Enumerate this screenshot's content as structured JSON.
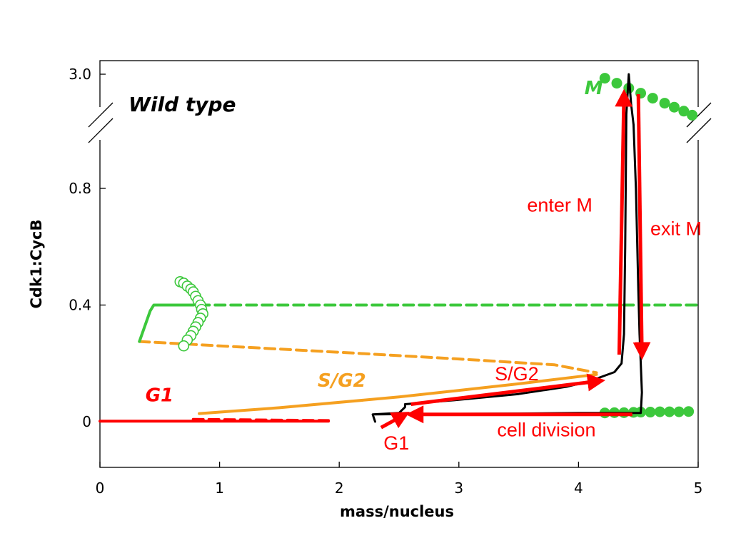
{
  "chart_data": {
    "type": "line",
    "title": "Wild type",
    "xlabel": "mass/nucleus",
    "ylabel": "Cdk1:CycB",
    "xlim": [
      0,
      5
    ],
    "ylim_lower": [
      -0.15,
      1.0
    ],
    "ylim_upper_tick": 3.0,
    "y_axis_break": true,
    "x_ticks": [
      {
        "value": 0,
        "label": "0"
      },
      {
        "value": 1,
        "label": "1"
      },
      {
        "value": 2,
        "label": "2"
      },
      {
        "value": 3,
        "label": "3"
      },
      {
        "value": 4,
        "label": "4"
      },
      {
        "value": 5,
        "label": "5"
      }
    ],
    "y_ticks": [
      {
        "value": 0,
        "label": "0"
      },
      {
        "value": 0.4,
        "label": "0.4"
      },
      {
        "value": 0.8,
        "label": "0.8"
      },
      {
        "value": 3.0,
        "label": "3.0"
      }
    ],
    "colors": {
      "g1": "#ff0000",
      "sg2": "#f5a020",
      "m": "#3cc83c",
      "trajectory": "#000000",
      "arrows": "#ff0000"
    },
    "region_labels": [
      {
        "key": "g1",
        "text": "G1",
        "x": 0.38,
        "y": 0.07
      },
      {
        "key": "sg2",
        "text": "S/G2",
        "x": 1.82,
        "y": 0.12
      },
      {
        "key": "m",
        "text": "M",
        "x": 4.05,
        "y": 2.9
      }
    ],
    "annotations": [
      {
        "key": "enter-m",
        "text": "enter M",
        "x": 3.57,
        "y": 0.72
      },
      {
        "key": "exit-m",
        "text": "exit M",
        "x": 4.6,
        "y": 0.64
      },
      {
        "key": "sg2-phase",
        "text": "S/G2",
        "x": 3.3,
        "y": 0.142
      },
      {
        "key": "cell-division",
        "text": "cell division",
        "x": 3.32,
        "y": -0.05
      },
      {
        "key": "g1-phase",
        "text": "G1",
        "x": 2.37,
        "y": -0.095
      }
    ],
    "series": [
      {
        "key": "g1-stable",
        "style": "solid",
        "x": [
          0,
          1.91
        ],
        "y": [
          0.002,
          0.002
        ]
      },
      {
        "key": "g1-unstable",
        "style": "dashed",
        "x": [
          0.78,
          1.91
        ],
        "y": [
          0.008,
          0.004
        ]
      },
      {
        "key": "sg2-stable",
        "style": "solid",
        "x": [
          0.83,
          1.5,
          2.5,
          3.5,
          4.15
        ],
        "y": [
          0.028,
          0.048,
          0.085,
          0.13,
          0.162
        ]
      },
      {
        "key": "sg2-unstable",
        "style": "dashed",
        "x": [
          0.33,
          1.0,
          2.0,
          3.0,
          3.8,
          4.15,
          4.1
        ],
        "y": [
          0.275,
          0.26,
          0.238,
          0.215,
          0.195,
          0.168,
          0.15
        ]
      },
      {
        "key": "m-stable-lower",
        "style": "solid",
        "x": [
          0.33,
          0.42,
          0.45,
          0.7
        ],
        "y": [
          0.275,
          0.38,
          0.4,
          0.4
        ]
      },
      {
        "key": "m-unstable-lower",
        "style": "dashed",
        "x": [
          0.7,
          5.0
        ],
        "y": [
          0.4,
          0.4
        ]
      },
      {
        "key": "m-stable-upper",
        "style": "dots",
        "x": [
          4.22,
          4.32,
          4.42,
          4.52,
          4.62,
          4.72,
          4.8,
          4.88,
          4.95
        ],
        "y": [
          2.98,
          2.955,
          2.93,
          2.905,
          2.88,
          2.855,
          2.835,
          2.815,
          2.795
        ]
      },
      {
        "key": "m-stable-bottom",
        "style": "dots",
        "x": [
          4.22,
          4.3,
          4.38,
          4.46,
          4.52,
          4.6,
          4.68,
          4.76,
          4.84,
          4.92
        ],
        "y": [
          0.03,
          0.031,
          0.031,
          0.032,
          0.033,
          0.033,
          0.034,
          0.034,
          0.034,
          0.035
        ]
      },
      {
        "key": "periodic-orbit",
        "style": "open-dots",
        "x": [
          0.67,
          0.7,
          0.73,
          0.76,
          0.78,
          0.8,
          0.82,
          0.84,
          0.85,
          0.86,
          0.84,
          0.82,
          0.8,
          0.78,
          0.76,
          0.73,
          0.7
        ],
        "y": [
          0.48,
          0.475,
          0.465,
          0.455,
          0.445,
          0.43,
          0.415,
          0.4,
          0.385,
          0.37,
          0.355,
          0.34,
          0.325,
          0.31,
          0.295,
          0.28,
          0.26
        ]
      },
      {
        "key": "trajectory",
        "style": "solid",
        "x": [
          2.3,
          2.28,
          2.5,
          2.55,
          2.55,
          3.0,
          3.5,
          3.9,
          4.1,
          4.2,
          4.3,
          4.36,
          4.38,
          4.39,
          4.4,
          4.42,
          4.44,
          4.46,
          4.48,
          4.5,
          4.51,
          4.52,
          4.53,
          4.52,
          4.4,
          4.0,
          3.5,
          3.0,
          2.5,
          2.3
        ],
        "y": [
          0.0,
          0.025,
          0.03,
          0.05,
          0.06,
          0.075,
          0.095,
          0.12,
          0.14,
          0.155,
          0.17,
          0.2,
          0.3,
          0.6,
          2.8,
          3.0,
          2.85,
          1.6,
          0.8,
          0.45,
          0.3,
          0.2,
          0.1,
          0.03,
          0.03,
          0.03,
          0.028,
          0.027,
          0.026,
          0.025
        ]
      }
    ],
    "arrows": [
      {
        "key": "g1-arrow",
        "from": [
          2.35,
          -0.02
        ],
        "to": [
          2.55,
          0.025
        ]
      },
      {
        "key": "sg2-arrow",
        "from": [
          2.6,
          0.06
        ],
        "to": [
          4.18,
          0.14
        ]
      },
      {
        "key": "enter-m-arrow",
        "from": [
          4.34,
          0.23
        ],
        "to": [
          4.38,
          2.9
        ]
      },
      {
        "key": "exit-m-arrow",
        "from": [
          4.5,
          2.9
        ],
        "to": [
          4.53,
          0.23
        ]
      },
      {
        "key": "cell-division-arrow",
        "from": [
          4.45,
          0.025
        ],
        "to": [
          2.6,
          0.025
        ]
      }
    ]
  }
}
